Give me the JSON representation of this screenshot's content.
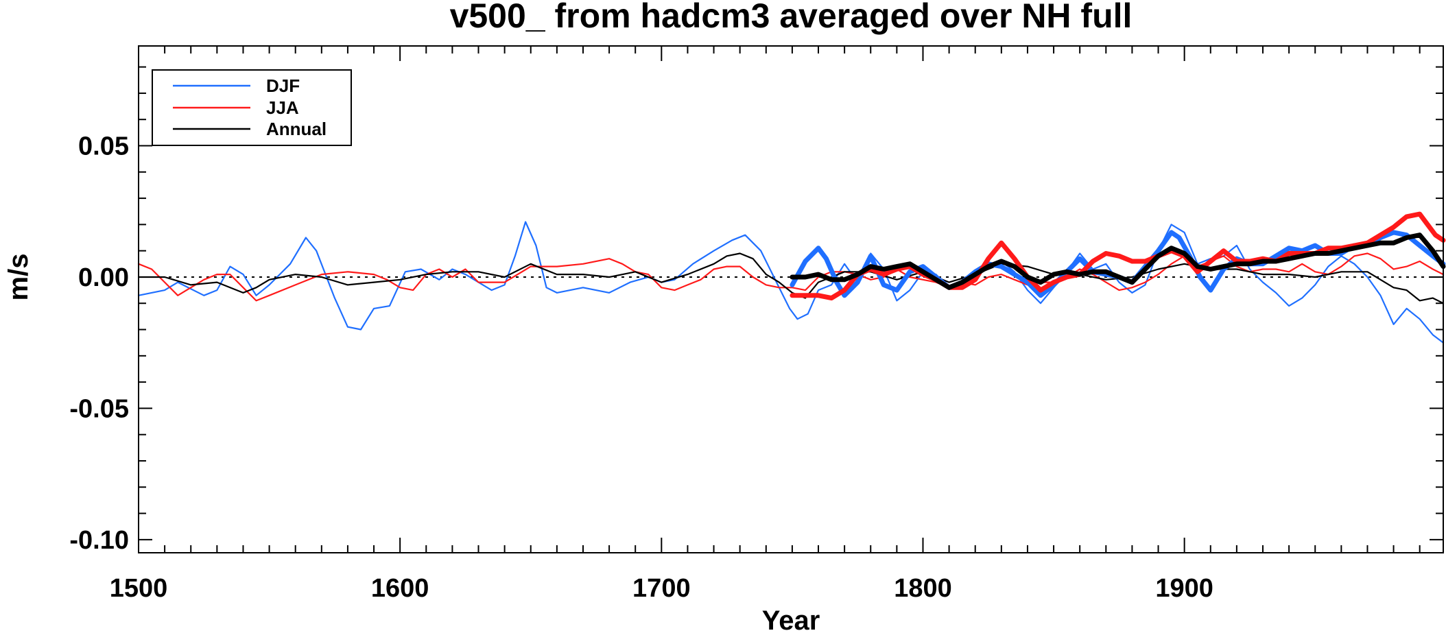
{
  "chart_data": {
    "type": "line",
    "title": "v500_ from hadcm3 averaged over NH full",
    "xlabel": "Year",
    "ylabel": "m/s",
    "xlim": [
      1500,
      1999
    ],
    "ylim": [
      -0.105,
      0.088
    ],
    "xticks": [
      1500,
      1600,
      1700,
      1800,
      1900
    ],
    "xtick_labels": [
      "1500",
      "1600",
      "1700",
      "1800",
      "1900"
    ],
    "yticks": [
      -0.1,
      -0.05,
      0.0,
      0.05
    ],
    "ytick_labels": [
      "-0.10",
      "-0.05",
      "0.00",
      "0.05"
    ],
    "reference_line": 0,
    "legend": {
      "placement": "top-left",
      "entries": [
        {
          "label": "DJF",
          "color": "#1f6fff"
        },
        {
          "label": "JJA",
          "color": "#ff1a1a"
        },
        {
          "label": "Annual",
          "color": "#000000"
        }
      ]
    },
    "series": [
      {
        "name": "DJF",
        "color": "#1f6fff",
        "style": "thin",
        "x": [
          1500,
          1510,
          1515,
          1525,
          1530,
          1535,
          1540,
          1545,
          1550,
          1558,
          1564,
          1568,
          1575,
          1580,
          1585,
          1590,
          1596,
          1602,
          1608,
          1615,
          1620,
          1625,
          1630,
          1635,
          1640,
          1644,
          1648,
          1652,
          1656,
          1660,
          1670,
          1680,
          1688,
          1695,
          1700,
          1705,
          1712,
          1720,
          1727,
          1732,
          1738,
          1745,
          1749,
          1752,
          1756,
          1760,
          1765,
          1770,
          1775,
          1780,
          1785,
          1790,
          1795,
          1800,
          1805,
          1810,
          1815,
          1820,
          1825,
          1830,
          1835,
          1840,
          1845,
          1850,
          1855,
          1860,
          1865,
          1870,
          1875,
          1880,
          1885,
          1890,
          1895,
          1900,
          1905,
          1910,
          1915,
          1920,
          1925,
          1930,
          1935,
          1940,
          1945,
          1950,
          1955,
          1960,
          1965,
          1970,
          1975,
          1980,
          1985,
          1990,
          1995,
          1999
        ],
        "y": [
          -0.007,
          -0.005,
          -0.002,
          -0.007,
          -0.005,
          0.004,
          0.001,
          -0.007,
          -0.003,
          0.005,
          0.015,
          0.01,
          -0.008,
          -0.019,
          -0.02,
          -0.012,
          -0.011,
          0.002,
          0.003,
          -0.001,
          0.003,
          0.001,
          -0.002,
          -0.005,
          -0.003,
          0.008,
          0.021,
          0.012,
          -0.004,
          -0.006,
          -0.004,
          -0.006,
          -0.002,
          0.0,
          -0.002,
          -0.001,
          0.005,
          0.01,
          0.014,
          0.016,
          0.01,
          -0.004,
          -0.012,
          -0.016,
          -0.014,
          -0.005,
          -0.003,
          0.005,
          -0.002,
          0.009,
          0.003,
          -0.009,
          -0.005,
          0.002,
          0.001,
          -0.004,
          -0.003,
          0.002,
          0.004,
          0.006,
          0.002,
          -0.005,
          -0.01,
          -0.004,
          0.002,
          0.009,
          0.003,
          0.005,
          -0.002,
          -0.006,
          -0.003,
          0.01,
          0.02,
          0.017,
          0.005,
          0.007,
          0.008,
          0.012,
          0.003,
          -0.002,
          -0.006,
          -0.011,
          -0.008,
          -0.003,
          0.004,
          0.008,
          0.005,
          0.0,
          -0.007,
          -0.018,
          -0.012,
          -0.016,
          -0.022,
          -0.025
        ]
      },
      {
        "name": "JJA",
        "color": "#ff1a1a",
        "style": "thin",
        "x": [
          1500,
          1505,
          1510,
          1515,
          1520,
          1525,
          1530,
          1535,
          1540,
          1545,
          1550,
          1560,
          1570,
          1580,
          1590,
          1595,
          1600,
          1605,
          1610,
          1615,
          1620,
          1625,
          1630,
          1640,
          1650,
          1660,
          1670,
          1680,
          1685,
          1690,
          1695,
          1700,
          1705,
          1710,
          1715,
          1720,
          1725,
          1730,
          1735,
          1740,
          1745,
          1750,
          1755,
          1760,
          1765,
          1770,
          1775,
          1780,
          1785,
          1790,
          1795,
          1800,
          1805,
          1810,
          1815,
          1820,
          1825,
          1830,
          1835,
          1840,
          1845,
          1850,
          1855,
          1860,
          1865,
          1870,
          1875,
          1880,
          1885,
          1890,
          1895,
          1900,
          1905,
          1910,
          1915,
          1920,
          1925,
          1930,
          1935,
          1940,
          1945,
          1950,
          1955,
          1960,
          1965,
          1970,
          1975,
          1980,
          1985,
          1990,
          1995,
          1999
        ],
        "y": [
          0.005,
          0.003,
          -0.002,
          -0.007,
          -0.004,
          -0.001,
          0.001,
          0.001,
          -0.004,
          -0.009,
          -0.007,
          -0.003,
          0.001,
          0.002,
          0.001,
          -0.001,
          -0.004,
          -0.005,
          0.001,
          0.003,
          0.0,
          0.003,
          -0.002,
          -0.002,
          0.004,
          0.004,
          0.005,
          0.007,
          0.005,
          0.002,
          0.001,
          -0.004,
          -0.005,
          -0.003,
          -0.001,
          0.003,
          0.004,
          0.004,
          0.0,
          -0.003,
          -0.004,
          -0.004,
          -0.005,
          0.0,
          0.002,
          0.002,
          0.001,
          -0.001,
          0.0,
          0.003,
          0.0,
          -0.001,
          -0.002,
          -0.004,
          -0.002,
          -0.003,
          0.0,
          0.001,
          -0.001,
          -0.003,
          -0.002,
          -0.002,
          0.0,
          0.003,
          0.001,
          -0.002,
          -0.005,
          -0.004,
          -0.002,
          0.001,
          0.005,
          0.008,
          0.004,
          0.006,
          0.008,
          0.004,
          0.002,
          0.003,
          0.003,
          0.002,
          0.005,
          0.002,
          0.001,
          0.004,
          0.008,
          0.009,
          0.007,
          0.003,
          0.004,
          0.006,
          0.003,
          0.001
        ]
      },
      {
        "name": "Annual",
        "color": "#000000",
        "style": "thin",
        "x": [
          1500,
          1510,
          1520,
          1530,
          1540,
          1545,
          1550,
          1560,
          1570,
          1580,
          1590,
          1600,
          1610,
          1620,
          1630,
          1640,
          1650,
          1660,
          1670,
          1680,
          1690,
          1700,
          1710,
          1720,
          1725,
          1730,
          1735,
          1740,
          1745,
          1750,
          1755,
          1760,
          1765,
          1770,
          1780,
          1790,
          1800,
          1810,
          1820,
          1830,
          1840,
          1850,
          1860,
          1870,
          1880,
          1890,
          1900,
          1910,
          1920,
          1930,
          1940,
          1950,
          1960,
          1970,
          1980,
          1985,
          1990,
          1995,
          1999
        ],
        "y": [
          0.0,
          0.0,
          -0.003,
          -0.002,
          -0.006,
          -0.004,
          -0.001,
          0.001,
          0.0,
          -0.003,
          -0.002,
          -0.001,
          0.001,
          0.002,
          0.002,
          0.0,
          0.005,
          0.001,
          0.001,
          0.0,
          0.002,
          -0.002,
          0.001,
          0.005,
          0.008,
          0.009,
          0.007,
          0.001,
          -0.002,
          -0.006,
          -0.008,
          -0.002,
          0.0,
          0.002,
          0.002,
          -0.001,
          0.002,
          -0.002,
          0.001,
          0.005,
          0.004,
          0.001,
          0.001,
          -0.001,
          0.0,
          0.003,
          0.005,
          0.003,
          0.003,
          0.001,
          0.001,
          0.0,
          0.002,
          0.002,
          -0.004,
          -0.005,
          -0.009,
          -0.008,
          -0.01
        ]
      },
      {
        "name": "DJF smoothed",
        "color": "#1f6fff",
        "style": "thick",
        "x": [
          1750,
          1755,
          1760,
          1763,
          1767,
          1770,
          1775,
          1780,
          1785,
          1790,
          1795,
          1800,
          1805,
          1810,
          1815,
          1820,
          1825,
          1830,
          1835,
          1840,
          1845,
          1850,
          1855,
          1860,
          1865,
          1870,
          1875,
          1880,
          1885,
          1890,
          1895,
          1898,
          1902,
          1906,
          1910,
          1915,
          1920,
          1925,
          1930,
          1935,
          1940,
          1945,
          1950,
          1955,
          1960,
          1965,
          1970,
          1975,
          1980,
          1985,
          1990,
          1995,
          1999
        ],
        "y": [
          -0.003,
          0.006,
          0.011,
          0.007,
          -0.002,
          -0.007,
          -0.002,
          0.008,
          -0.003,
          -0.005,
          0.002,
          0.004,
          0.0,
          -0.004,
          -0.002,
          0.002,
          0.005,
          0.004,
          0.001,
          -0.002,
          -0.007,
          -0.003,
          0.002,
          0.007,
          0.002,
          0.001,
          0.0,
          -0.002,
          0.004,
          0.01,
          0.017,
          0.015,
          0.008,
          0.0,
          -0.005,
          0.003,
          0.007,
          0.005,
          0.005,
          0.008,
          0.011,
          0.01,
          0.012,
          0.009,
          0.009,
          0.012,
          0.012,
          0.015,
          0.017,
          0.016,
          0.012,
          0.008,
          0.005
        ]
      },
      {
        "name": "JJA smoothed",
        "color": "#ff1a1a",
        "style": "thick",
        "x": [
          1750,
          1755,
          1760,
          1765,
          1770,
          1775,
          1780,
          1785,
          1790,
          1795,
          1800,
          1805,
          1810,
          1815,
          1820,
          1825,
          1830,
          1835,
          1840,
          1845,
          1850,
          1855,
          1860,
          1865,
          1870,
          1875,
          1880,
          1885,
          1890,
          1895,
          1900,
          1905,
          1910,
          1915,
          1920,
          1925,
          1930,
          1935,
          1940,
          1945,
          1950,
          1955,
          1960,
          1965,
          1970,
          1975,
          1980,
          1985,
          1990,
          1993,
          1996,
          1999
        ],
        "y": [
          -0.007,
          -0.007,
          -0.007,
          -0.008,
          -0.005,
          0.001,
          0.003,
          0.001,
          0.003,
          0.004,
          0.001,
          -0.001,
          -0.004,
          -0.004,
          -0.001,
          0.007,
          0.013,
          0.007,
          0.0,
          -0.005,
          -0.002,
          0.0,
          0.001,
          0.006,
          0.009,
          0.008,
          0.006,
          0.006,
          0.008,
          0.01,
          0.008,
          0.002,
          0.006,
          0.01,
          0.006,
          0.006,
          0.007,
          0.006,
          0.009,
          0.009,
          0.009,
          0.011,
          0.011,
          0.012,
          0.013,
          0.016,
          0.019,
          0.023,
          0.024,
          0.02,
          0.016,
          0.014
        ]
      },
      {
        "name": "Annual smoothed",
        "color": "#000000",
        "style": "thick",
        "x": [
          1750,
          1755,
          1760,
          1765,
          1770,
          1775,
          1780,
          1785,
          1790,
          1795,
          1800,
          1805,
          1810,
          1815,
          1820,
          1825,
          1830,
          1835,
          1840,
          1845,
          1850,
          1855,
          1860,
          1865,
          1870,
          1875,
          1880,
          1885,
          1890,
          1895,
          1900,
          1905,
          1910,
          1915,
          1920,
          1925,
          1930,
          1935,
          1940,
          1945,
          1950,
          1955,
          1960,
          1965,
          1970,
          1975,
          1980,
          1985,
          1990,
          1995,
          1999
        ],
        "y": [
          0.0,
          0.0,
          0.001,
          -0.001,
          -0.001,
          0.001,
          0.004,
          0.003,
          0.004,
          0.005,
          0.002,
          -0.001,
          -0.004,
          -0.002,
          0.001,
          0.004,
          0.006,
          0.004,
          0.0,
          -0.002,
          0.001,
          0.002,
          0.001,
          0.002,
          0.002,
          0.0,
          -0.002,
          0.003,
          0.008,
          0.011,
          0.009,
          0.004,
          0.003,
          0.004,
          0.005,
          0.005,
          0.006,
          0.006,
          0.007,
          0.008,
          0.009,
          0.009,
          0.01,
          0.011,
          0.012,
          0.013,
          0.013,
          0.015,
          0.016,
          0.01,
          0.004
        ]
      }
    ]
  }
}
